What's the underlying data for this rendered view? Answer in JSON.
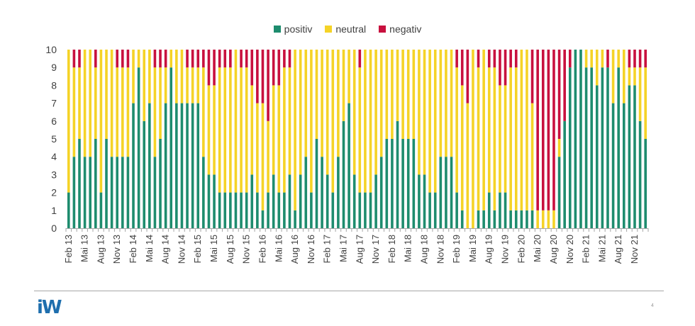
{
  "chart_data": {
    "type": "bar",
    "stacked": true,
    "title": "",
    "xlabel": "",
    "ylabel": "",
    "ylim": [
      0,
      10
    ],
    "yticks": [
      0,
      1,
      2,
      3,
      4,
      5,
      6,
      7,
      8,
      9,
      10
    ],
    "legend_position": "top-center",
    "categories": [
      "Feb 13",
      "Mär 13",
      "Apr 13",
      "Mai 13",
      "Jun 13",
      "Jul 13",
      "Aug 13",
      "Sep 13",
      "Okt 13",
      "Nov 13",
      "Dez 13",
      "Jan 14",
      "Feb 14",
      "Mär 14",
      "Apr 14",
      "Mai 14",
      "Jun 14",
      "Jul 14",
      "Aug 14",
      "Sep 14",
      "Okt 14",
      "Nov 14",
      "Dez 14",
      "Jan 15",
      "Feb 15",
      "Mär 15",
      "Apr 15",
      "Mai 15",
      "Jun 15",
      "Jul 15",
      "Aug 15",
      "Sep 15",
      "Okt 15",
      "Nov 15",
      "Dez 15",
      "Jan 16",
      "Feb 16",
      "Mär 16",
      "Apr 16",
      "Mai 16",
      "Jun 16",
      "Jul 16",
      "Aug 16",
      "Sep 16",
      "Okt 16",
      "Nov 16",
      "Dez 16",
      "Jan 17",
      "Feb 17",
      "Mär 17",
      "Apr 17",
      "Mai 17",
      "Jun 17",
      "Jul 17",
      "Aug 17",
      "Sep 17",
      "Okt 17",
      "Nov 17",
      "Dez 17",
      "Jan 18",
      "Feb 18",
      "Mär 18",
      "Apr 18",
      "Mai 18",
      "Jun 18",
      "Jul 18",
      "Aug 18",
      "Sep 18",
      "Okt 18",
      "Nov 18",
      "Dez 18",
      "Jan 19",
      "Feb 19",
      "Mär 19",
      "Apr 19",
      "Mai 19",
      "Jun 19",
      "Jul 19",
      "Aug 19",
      "Sep 19",
      "Okt 19",
      "Nov 19",
      "Dez 19",
      "Jan 20",
      "Feb 20",
      "Mär 20",
      "Apr 20",
      "Mai 20",
      "Jun 20",
      "Jul 20",
      "Aug 20",
      "Sep 20",
      "Okt 20",
      "Nov 20",
      "Dez 20",
      "Jan 21",
      "Feb 21",
      "Mär 21",
      "Apr 21",
      "Mai 21",
      "Jun 21",
      "Jul 21",
      "Aug 21",
      "Sep 21",
      "Okt 21",
      "Nov 21",
      "Dez 21",
      "Jan 22"
    ],
    "tick_label_every": 3,
    "series": [
      {
        "name": "positiv",
        "color": "#1e8c6e",
        "values": [
          2,
          4,
          5,
          4,
          4,
          5,
          2,
          5,
          4,
          4,
          4,
          4,
          7,
          9,
          6,
          7,
          4,
          5,
          7,
          9,
          7,
          7,
          7,
          7,
          7,
          4,
          3,
          3,
          2,
          2,
          2,
          2,
          2,
          2,
          3,
          2,
          1,
          2,
          3,
          2,
          2,
          3,
          1,
          3,
          4,
          2,
          5,
          4,
          3,
          2,
          4,
          6,
          7,
          3,
          2,
          2,
          2,
          3,
          4,
          5,
          5,
          6,
          5,
          5,
          5,
          3,
          3,
          2,
          2,
          4,
          4,
          4,
          2,
          1,
          0,
          0,
          1,
          1,
          2,
          1,
          2,
          2,
          1,
          1,
          1,
          1,
          1,
          0,
          0,
          0,
          0,
          4,
          6,
          9,
          10,
          10,
          9,
          9,
          8,
          9,
          9,
          7,
          9,
          7,
          8,
          8,
          6,
          5
        ]
      },
      {
        "name": "neutral",
        "color": "#f5d327",
        "values": [
          8,
          5,
          4,
          6,
          6,
          4,
          8,
          5,
          6,
          5,
          5,
          5,
          3,
          1,
          4,
          3,
          5,
          4,
          2,
          1,
          3,
          3,
          2,
          2,
          2,
          5,
          5,
          5,
          7,
          7,
          7,
          8,
          7,
          7,
          5,
          5,
          6,
          4,
          5,
          6,
          7,
          6,
          9,
          7,
          6,
          8,
          5,
          6,
          7,
          8,
          6,
          4,
          3,
          7,
          7,
          8,
          8,
          7,
          6,
          5,
          5,
          4,
          5,
          5,
          5,
          7,
          7,
          8,
          8,
          6,
          6,
          6,
          7,
          7,
          7,
          10,
          8,
          9,
          7,
          8,
          6,
          6,
          8,
          8,
          9,
          9,
          6,
          1,
          1,
          1,
          1,
          1,
          0,
          0,
          0,
          0,
          1,
          1,
          2,
          1,
          0,
          3,
          1,
          3,
          1,
          1,
          3,
          4
        ]
      },
      {
        "name": "negativ",
        "color": "#c8103e",
        "values": [
          0,
          1,
          1,
          0,
          0,
          1,
          0,
          0,
          0,
          1,
          1,
          1,
          0,
          0,
          0,
          0,
          1,
          1,
          1,
          0,
          0,
          0,
          1,
          1,
          1,
          1,
          2,
          2,
          1,
          1,
          1,
          0,
          1,
          1,
          2,
          3,
          3,
          4,
          2,
          2,
          1,
          1,
          0,
          0,
          0,
          0,
          0,
          0,
          0,
          0,
          0,
          0,
          0,
          0,
          1,
          0,
          0,
          0,
          0,
          0,
          0,
          0,
          0,
          0,
          0,
          0,
          0,
          0,
          0,
          0,
          0,
          0,
          1,
          2,
          3,
          0,
          1,
          0,
          1,
          1,
          2,
          2,
          1,
          1,
          0,
          0,
          3,
          9,
          9,
          9,
          9,
          5,
          4,
          1,
          0,
          0,
          0,
          0,
          0,
          0,
          1,
          0,
          0,
          0,
          1,
          1,
          1,
          1
        ]
      }
    ]
  },
  "footer": {
    "logo": "iW",
    "page_number": "4"
  }
}
